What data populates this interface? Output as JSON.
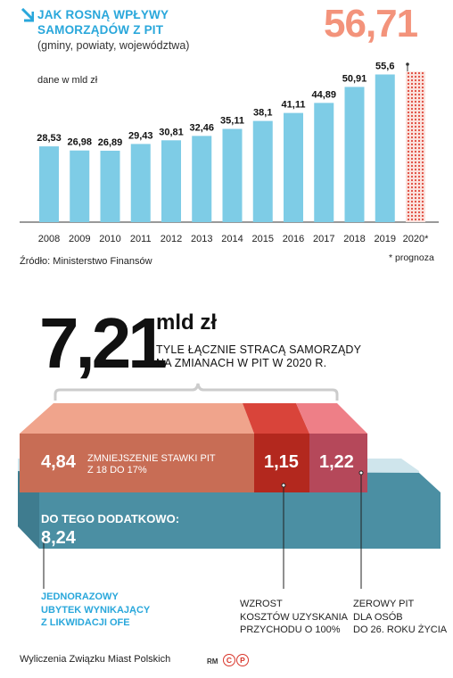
{
  "header": {
    "title_line1": "JAK ROSNĄ WPŁYWY",
    "title_line2": "SAMORZĄDÓW Z PIT",
    "subtitle": "(gminy, powiaty, województwa)",
    "unit_label": "dane w mld zł",
    "highlight_value": "56,71"
  },
  "chart_data": {
    "type": "bar",
    "categories": [
      "2008",
      "2009",
      "2010",
      "2011",
      "2012",
      "2013",
      "2014",
      "2015",
      "2016",
      "2017",
      "2018",
      "2019",
      "2020*"
    ],
    "values": [
      28.53,
      26.98,
      26.89,
      29.43,
      30.81,
      32.46,
      35.11,
      38.1,
      41.11,
      44.89,
      50.91,
      55.6,
      56.71
    ],
    "value_labels": [
      "28,53",
      "26,98",
      "26,89",
      "29,43",
      "30,81",
      "32,46",
      "35,11",
      "38,1",
      "41,11",
      "44,89",
      "50,91",
      "55,6",
      ""
    ],
    "forecast_index": 12,
    "ylabel": "dane w mld zł",
    "colors": {
      "bar": "#7ecce6",
      "forecast": "#e0473a"
    }
  },
  "source": "Źródło: Ministerstwo Finansów",
  "footnote": "* prognoza",
  "loss": {
    "total": "7,21",
    "unit": "mld zł",
    "desc_line1": "TYLE ŁĄCZNIE STRACĄ SAMORZĄDY",
    "desc_line2": "NA ZMIANACH W PIT W 2020 R.",
    "segments": [
      {
        "value": "4,84",
        "label_line1": "ZMNIEJSZENIE STAWKI PIT",
        "label_line2": "Z 18 DO 17%"
      },
      {
        "value": "1,15"
      },
      {
        "value": "1,22"
      }
    ],
    "extra_title": "DO TEGO DODATKOWO:",
    "extra_value": "8,24",
    "notes": [
      {
        "lines": [
          "JEDNORAZOWY",
          "UBYTEK WYNIKAJĄCY",
          "Z LIKWIDACJI OFE"
        ]
      },
      {
        "lines": [
          "WZROST",
          "KOSZTÓW UZYSKANIA",
          "PRZYCHODU O 100%"
        ]
      },
      {
        "lines": [
          "ZEROWY PIT",
          "DLA OSÓB",
          "DO 26. ROKU ŻYCIA"
        ]
      }
    ]
  },
  "footer": {
    "credit": "Wyliczenia Związku Miast Polskich",
    "rm": "RM"
  },
  "colors": {
    "accent_blue": "#29a7db",
    "salmon": "#f3937b",
    "seg1": "#c86d55",
    "seg2": "#b3281e",
    "seg3": "#b5485a",
    "teal": "#4b8fa3"
  }
}
